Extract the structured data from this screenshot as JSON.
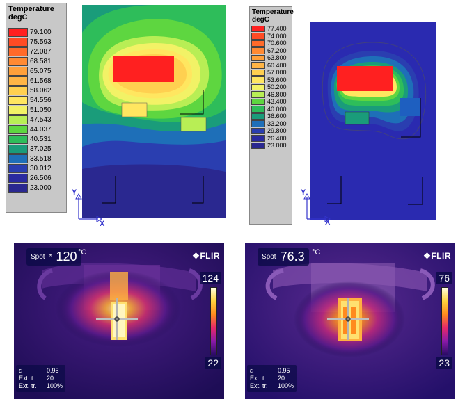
{
  "legend_left": {
    "title_line1": "Temperature",
    "title_line2": "degC",
    "items": [
      {
        "value": "79.100",
        "color": "#ff2020"
      },
      {
        "value": "75.593",
        "color": "#ff4b24"
      },
      {
        "value": "72.087",
        "color": "#ff6a2a"
      },
      {
        "value": "68.581",
        "color": "#ff8a33"
      },
      {
        "value": "65.075",
        "color": "#ffa03a"
      },
      {
        "value": "61.568",
        "color": "#ffb546"
      },
      {
        "value": "58.062",
        "color": "#ffd050"
      },
      {
        "value": "54.556",
        "color": "#ffe660"
      },
      {
        "value": "51.050",
        "color": "#f2f266"
      },
      {
        "value": "47.543",
        "color": "#b8ee55"
      },
      {
        "value": "44.037",
        "color": "#5ed640"
      },
      {
        "value": "40.531",
        "color": "#2ebd5a"
      },
      {
        "value": "37.025",
        "color": "#1a9c7a"
      },
      {
        "value": "33.518",
        "color": "#1e6fb8"
      },
      {
        "value": "30.012",
        "color": "#2a3eb0"
      },
      {
        "value": "26.506",
        "color": "#2a2aa0"
      },
      {
        "value": "23.000",
        "color": "#2a2890"
      }
    ]
  },
  "legend_right": {
    "title_line1": "Temperature",
    "title_line2": "degC",
    "items": [
      {
        "value": "77.400",
        "color": "#ff2020"
      },
      {
        "value": "74.000",
        "color": "#ff4b24"
      },
      {
        "value": "70.600",
        "color": "#ff6a2a"
      },
      {
        "value": "67.200",
        "color": "#ff8a33"
      },
      {
        "value": "63.800",
        "color": "#ffa03a"
      },
      {
        "value": "60.400",
        "color": "#ffb546"
      },
      {
        "value": "57.000",
        "color": "#ffd050"
      },
      {
        "value": "53.600",
        "color": "#ffe660"
      },
      {
        "value": "50.200",
        "color": "#f2f266"
      },
      {
        "value": "46.800",
        "color": "#b8ee55"
      },
      {
        "value": "43.400",
        "color": "#5ed640"
      },
      {
        "value": "40.000",
        "color": "#2ebd5a"
      },
      {
        "value": "36.600",
        "color": "#1a9c7a"
      },
      {
        "value": "33.200",
        "color": "#1e6fb8"
      },
      {
        "value": "29.800",
        "color": "#2a3eb0"
      },
      {
        "value": "26.400",
        "color": "#2a2aa0"
      },
      {
        "value": "23.000",
        "color": "#2a2890"
      }
    ]
  },
  "axes": {
    "y_label": "Y",
    "x_label": "X"
  },
  "flir_left": {
    "spot_label": "Spot",
    "spot_marker": "*",
    "spot_value": "120",
    "unit": "°C",
    "brand": "FLIR",
    "scale_max": "124",
    "scale_min": "22",
    "params": [
      {
        "key": "ε",
        "value": "0.95"
      },
      {
        "key": "Ext. t.",
        "value": "20"
      },
      {
        "key": "Ext. tr.",
        "value": "100%"
      }
    ]
  },
  "flir_right": {
    "spot_label": "Spot",
    "spot_value": "76.3",
    "unit": "°C",
    "brand": "FLIR",
    "scale_max": "76",
    "scale_min": "23",
    "params": [
      {
        "key": "ε",
        "value": "0.95"
      },
      {
        "key": "Ext. t.",
        "value": "20"
      },
      {
        "key": "Ext. tr.",
        "value": "100%"
      }
    ]
  }
}
